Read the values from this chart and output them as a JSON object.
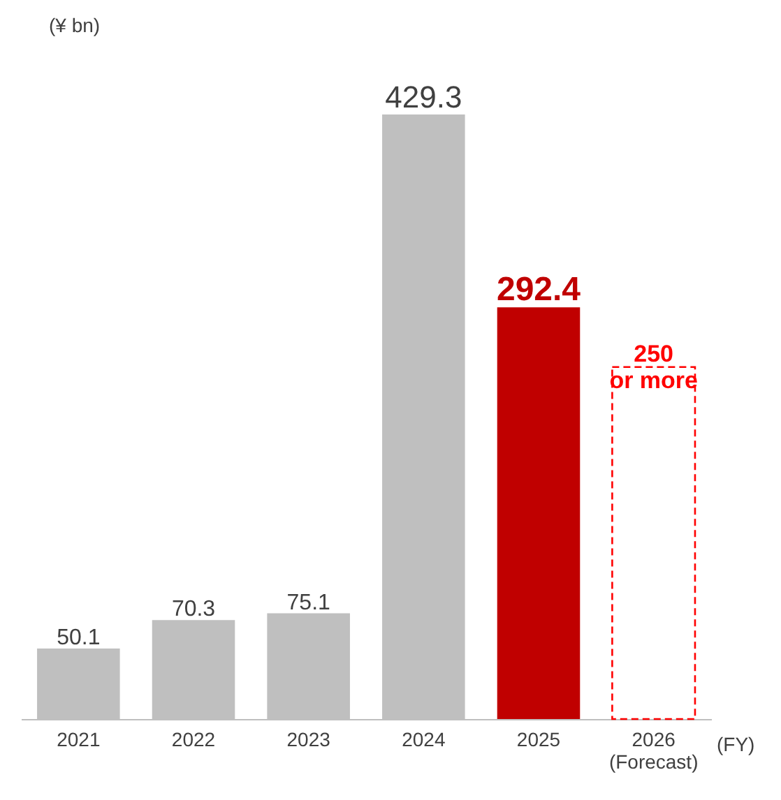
{
  "chart_data": {
    "type": "bar",
    "ylabel": "(¥ bn)",
    "xlabel": "(FY)",
    "categories": [
      "2021",
      "2022",
      "2023",
      "2024",
      "2025",
      "2026\n(Forecast)"
    ],
    "series": [
      {
        "values": [
          50.1,
          70.3,
          75.1,
          429.3,
          292.4,
          null
        ],
        "colors": [
          "#bfbfbf",
          "#bfbfbf",
          "#bfbfbf",
          "#bfbfbf",
          "#c00000",
          null
        ],
        "value_labels": [
          "50.1",
          "70.3",
          "75.1",
          "429.3",
          "292.4",
          null
        ]
      },
      {
        "type": "bar",
        "values": [
          null,
          null,
          null,
          null,
          null,
          250
        ],
        "color": "#ff0000",
        "line_style": "dashed",
        "value_labels": [
          null,
          null,
          null,
          null,
          null,
          "250\nor more"
        ]
      }
    ]
  }
}
